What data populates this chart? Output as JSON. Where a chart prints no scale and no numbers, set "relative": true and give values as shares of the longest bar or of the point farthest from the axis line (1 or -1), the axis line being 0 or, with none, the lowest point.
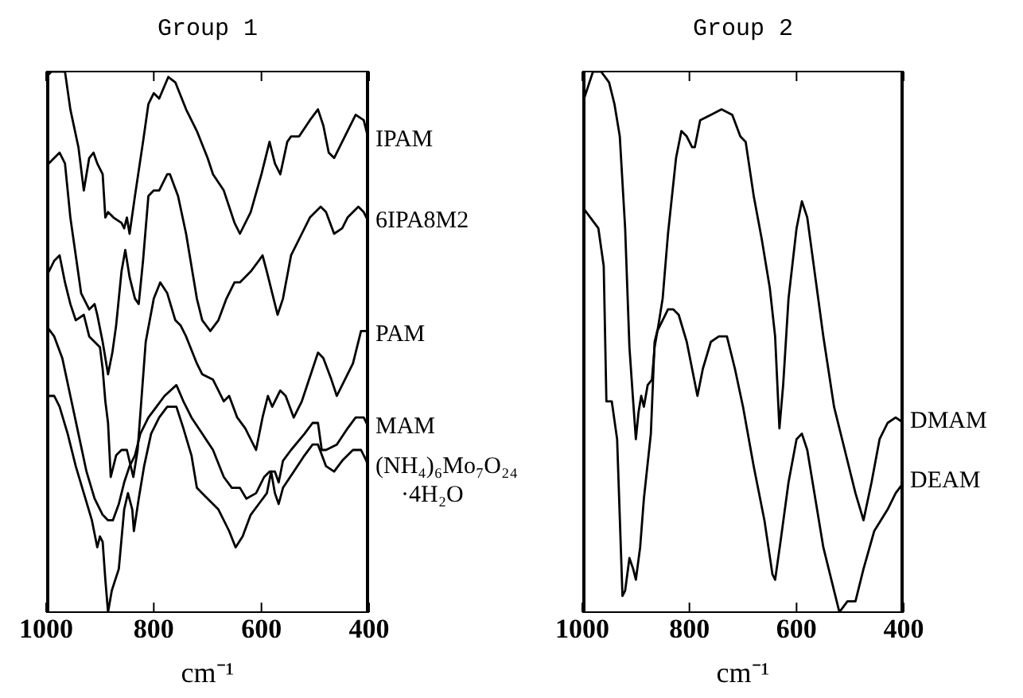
{
  "chart_data": [
    {
      "type": "line",
      "title": "Group 1",
      "xlabel": "cm⁻¹",
      "relative": true,
      "xlim": [
        1000,
        400
      ],
      "xticks": [
        1000,
        800,
        600,
        400
      ],
      "grid": false,
      "legend": false,
      "marker": "none",
      "line_style": "solid",
      "series": [
        {
          "name": "IPAM",
          "color": "#000000",
          "x": [
            1000,
            990,
            965,
            955,
            940,
            930,
            920,
            912,
            905,
            895,
            890,
            885,
            875,
            860,
            855,
            850,
            845,
            835,
            820,
            810,
            800,
            790,
            773,
            760,
            740,
            720,
            700,
            690,
            670,
            650,
            640,
            620,
            600,
            585,
            575,
            565,
            552,
            545,
            530,
            510,
            495,
            485,
            475,
            465,
            450,
            425,
            410,
            400
          ],
          "values": [
            0.99,
            1.0,
            1.0,
            0.93,
            0.86,
            0.78,
            0.84,
            0.85,
            0.83,
            0.81,
            0.73,
            0.74,
            0.73,
            0.72,
            0.71,
            0.73,
            0.7,
            0.77,
            0.87,
            0.94,
            0.96,
            0.95,
            0.99,
            0.98,
            0.93,
            0.89,
            0.84,
            0.81,
            0.78,
            0.72,
            0.7,
            0.74,
            0.81,
            0.87,
            0.83,
            0.81,
            0.87,
            0.88,
            0.88,
            0.91,
            0.93,
            0.9,
            0.85,
            0.84,
            0.87,
            0.92,
            0.91,
            0.87
          ]
        },
        {
          "name": "6IPA8M2",
          "color": "#000000",
          "x": [
            1000,
            995,
            985,
            975,
            965,
            955,
            945,
            935,
            920,
            910,
            905,
            895,
            885,
            877,
            870,
            860,
            853,
            845,
            835,
            828,
            820,
            810,
            800,
            790,
            775,
            770,
            755,
            740,
            720,
            710,
            695,
            680,
            665,
            650,
            640,
            620,
            605,
            598,
            590,
            575,
            570,
            560,
            545,
            525,
            510,
            490,
            480,
            465,
            450,
            440,
            420,
            410,
            400
          ],
          "values": [
            0.84,
            0.83,
            0.84,
            0.85,
            0.83,
            0.73,
            0.66,
            0.59,
            0.56,
            0.57,
            0.55,
            0.5,
            0.44,
            0.48,
            0.53,
            0.63,
            0.67,
            0.62,
            0.58,
            0.57,
            0.65,
            0.77,
            0.78,
            0.78,
            0.81,
            0.81,
            0.77,
            0.7,
            0.58,
            0.54,
            0.52,
            0.54,
            0.58,
            0.61,
            0.61,
            0.63,
            0.65,
            0.66,
            0.63,
            0.57,
            0.55,
            0.58,
            0.66,
            0.7,
            0.73,
            0.75,
            0.74,
            0.7,
            0.71,
            0.73,
            0.75,
            0.74,
            0.72
          ]
        },
        {
          "name": "PAM",
          "color": "#000000",
          "x": [
            1000,
            985,
            975,
            965,
            955,
            945,
            930,
            920,
            910,
            900,
            895,
            890,
            885,
            880,
            870,
            860,
            850,
            838,
            830,
            815,
            800,
            788,
            775,
            760,
            750,
            740,
            720,
            710,
            690,
            680,
            670,
            660,
            645,
            630,
            610,
            598,
            588,
            580,
            565,
            555,
            540,
            525,
            505,
            495,
            485,
            470,
            460,
            450,
            430,
            415,
            405,
            400
          ],
          "values": [
            0.62,
            0.65,
            0.66,
            0.61,
            0.57,
            0.54,
            0.55,
            0.51,
            0.5,
            0.49,
            0.45,
            0.39,
            0.35,
            0.25,
            0.29,
            0.3,
            0.3,
            0.25,
            0.3,
            0.5,
            0.58,
            0.61,
            0.59,
            0.54,
            0.53,
            0.51,
            0.46,
            0.44,
            0.43,
            0.41,
            0.39,
            0.4,
            0.36,
            0.34,
            0.3,
            0.36,
            0.4,
            0.38,
            0.41,
            0.4,
            0.36,
            0.39,
            0.45,
            0.48,
            0.47,
            0.43,
            0.4,
            0.42,
            0.46,
            0.52,
            0.52,
            0.51
          ]
        },
        {
          "name": "MAM",
          "color": "#000000",
          "x": [
            1000,
            985,
            970,
            955,
            940,
            925,
            910,
            895,
            885,
            876,
            865,
            855,
            845,
            835,
            825,
            810,
            795,
            780,
            758,
            745,
            730,
            710,
            690,
            670,
            655,
            640,
            628,
            610,
            595,
            585,
            575,
            568,
            560,
            545,
            520,
            505,
            495,
            488,
            480,
            460,
            440,
            425,
            410,
            400
          ],
          "values": [
            0.53,
            0.51,
            0.47,
            0.4,
            0.33,
            0.26,
            0.21,
            0.18,
            0.17,
            0.17,
            0.2,
            0.24,
            0.27,
            0.29,
            0.33,
            0.36,
            0.38,
            0.4,
            0.42,
            0.39,
            0.36,
            0.33,
            0.3,
            0.25,
            0.23,
            0.23,
            0.21,
            0.22,
            0.25,
            0.26,
            0.26,
            0.24,
            0.28,
            0.3,
            0.33,
            0.35,
            0.35,
            0.3,
            0.3,
            0.31,
            0.34,
            0.36,
            0.36,
            0.34
          ]
        },
        {
          "name": "(NH₄)₆Mo₇O₂₄·4H₂O",
          "color": "#000000",
          "x": [
            1000,
            985,
            975,
            960,
            945,
            930,
            915,
            905,
            900,
            895,
            890,
            885,
            878,
            865,
            855,
            848,
            840,
            837,
            828,
            818,
            805,
            790,
            775,
            758,
            745,
            730,
            720,
            700,
            680,
            660,
            648,
            635,
            620,
            605,
            590,
            582,
            575,
            568,
            560,
            540,
            520,
            505,
            495,
            480,
            465,
            450,
            430,
            415,
            405,
            400
          ],
          "values": [
            0.4,
            0.4,
            0.38,
            0.33,
            0.27,
            0.22,
            0.17,
            0.12,
            0.14,
            0.13,
            0.06,
            0.0,
            0.04,
            0.08,
            0.19,
            0.22,
            0.19,
            0.15,
            0.21,
            0.27,
            0.33,
            0.36,
            0.38,
            0.38,
            0.34,
            0.29,
            0.23,
            0.21,
            0.19,
            0.15,
            0.12,
            0.14,
            0.18,
            0.2,
            0.22,
            0.26,
            0.22,
            0.2,
            0.23,
            0.26,
            0.29,
            0.31,
            0.31,
            0.27,
            0.26,
            0.28,
            0.3,
            0.3,
            0.28,
            0.26
          ]
        }
      ]
    },
    {
      "type": "line",
      "title": "Group 2",
      "xlabel": "cm⁻¹",
      "relative": true,
      "xlim": [
        1000,
        400
      ],
      "xticks": [
        1000,
        800,
        600,
        400
      ],
      "grid": false,
      "legend": false,
      "marker": "none",
      "line_style": "solid",
      "series": [
        {
          "name": "DMAM",
          "color": "#000000",
          "x": [
            1000,
            990,
            980,
            965,
            950,
            940,
            930,
            920,
            912,
            905,
            900,
            895,
            890,
            885,
            878,
            870,
            865,
            858,
            850,
            840,
            825,
            815,
            805,
            795,
            790,
            780,
            760,
            740,
            720,
            705,
            695,
            680,
            665,
            650,
            640,
            632,
            625,
            615,
            600,
            590,
            580,
            565,
            550,
            530,
            510,
            490,
            475,
            460,
            445,
            430,
            415,
            400
          ],
          "values": [
            0.94,
            0.97,
            1.0,
            1.0,
            0.98,
            0.94,
            0.88,
            0.71,
            0.49,
            0.39,
            0.32,
            0.37,
            0.4,
            0.38,
            0.42,
            0.43,
            0.49,
            0.53,
            0.58,
            0.7,
            0.84,
            0.89,
            0.88,
            0.86,
            0.86,
            0.91,
            0.92,
            0.93,
            0.92,
            0.88,
            0.87,
            0.77,
            0.69,
            0.6,
            0.51,
            0.34,
            0.42,
            0.58,
            0.71,
            0.76,
            0.73,
            0.62,
            0.51,
            0.38,
            0.3,
            0.22,
            0.17,
            0.24,
            0.32,
            0.35,
            0.36,
            0.35
          ]
        },
        {
          "name": "DEAM",
          "color": "#000000",
          "x": [
            1000,
            985,
            970,
            960,
            955,
            945,
            935,
            925,
            920,
            912,
            905,
            900,
            892,
            885,
            872,
            865,
            860,
            850,
            840,
            830,
            820,
            805,
            795,
            785,
            775,
            760,
            745,
            730,
            715,
            700,
            680,
            660,
            645,
            640,
            630,
            615,
            600,
            590,
            580,
            565,
            550,
            530,
            520,
            505,
            490,
            475,
            455,
            430,
            415,
            400
          ],
          "values": [
            0.75,
            0.73,
            0.71,
            0.64,
            0.39,
            0.39,
            0.32,
            0.03,
            0.04,
            0.1,
            0.08,
            0.06,
            0.12,
            0.21,
            0.33,
            0.5,
            0.52,
            0.54,
            0.56,
            0.56,
            0.55,
            0.5,
            0.45,
            0.4,
            0.45,
            0.5,
            0.51,
            0.51,
            0.45,
            0.38,
            0.27,
            0.17,
            0.07,
            0.06,
            0.13,
            0.24,
            0.32,
            0.33,
            0.3,
            0.21,
            0.12,
            0.04,
            0.0,
            0.02,
            0.02,
            0.08,
            0.15,
            0.19,
            0.22,
            0.24
          ]
        }
      ]
    }
  ]
}
